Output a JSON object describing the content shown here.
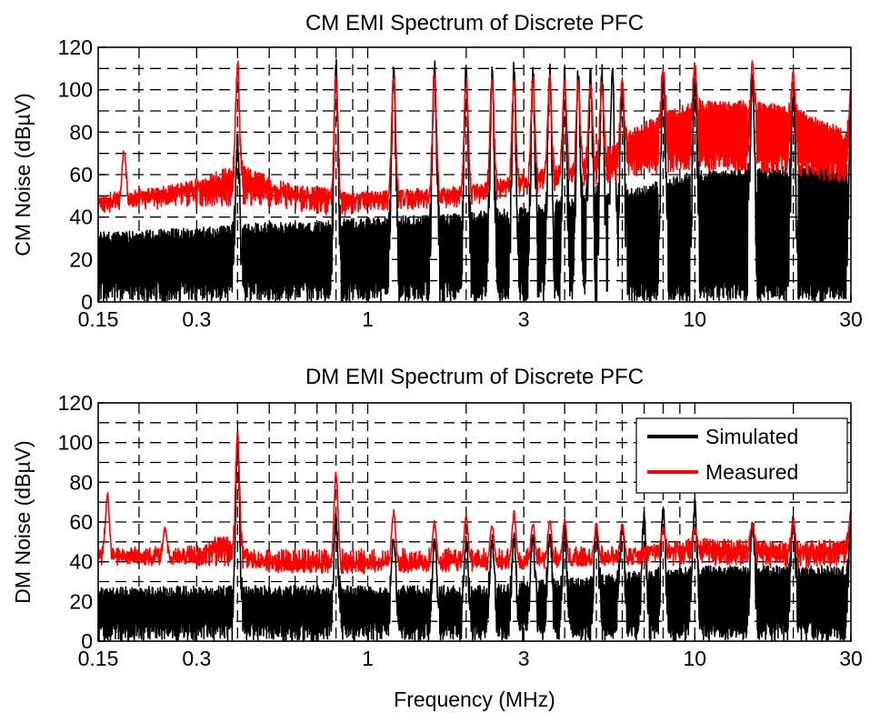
{
  "chart_data": [
    {
      "type": "line",
      "title": "CM EMI Spectrum of Discrete PFC",
      "xlabel": "",
      "ylabel": "CM Noise (dBµV)",
      "xscale": "log",
      "xlim": [
        0.15,
        30
      ],
      "ylim": [
        0,
        120
      ],
      "xticks": [
        0.15,
        0.3,
        1,
        3,
        10,
        30
      ],
      "xtick_labels": [
        "0.15",
        "0.3",
        "1",
        "3",
        "10",
        "30"
      ],
      "yticks": [
        0,
        20,
        40,
        60,
        80,
        100,
        120
      ],
      "ytick_labels": [
        "0",
        "20",
        "40",
        "60",
        "80",
        "100",
        "120"
      ],
      "grid": true,
      "legend": false,
      "series": [
        {
          "name": "Simulated",
          "color": "#000000",
          "floor": [
            [
              0.15,
              0
            ],
            [
              0.5,
              0
            ],
            [
              1,
              0
            ],
            [
              3,
              0
            ],
            [
              10,
              0
            ],
            [
              30,
              0
            ]
          ],
          "envelope": [
            [
              0.15,
              33
            ],
            [
              0.3,
              35
            ],
            [
              0.4,
              37
            ],
            [
              0.7,
              38
            ],
            [
              1,
              40
            ],
            [
              2,
              42
            ],
            [
              3,
              45
            ],
            [
              5,
              52
            ],
            [
              7,
              55
            ],
            [
              10,
              62
            ],
            [
              20,
              64
            ],
            [
              30,
              65
            ]
          ],
          "peaks": [
            [
              0.4,
              80
            ],
            [
              0.8,
              117
            ],
            [
              1.2,
              114
            ],
            [
              1.6,
              116
            ],
            [
              2.0,
              116
            ],
            [
              2.4,
              115
            ],
            [
              2.8,
              115
            ],
            [
              3.2,
              115
            ],
            [
              3.6,
              114
            ],
            [
              4.0,
              114
            ],
            [
              4.4,
              114
            ],
            [
              4.8,
              113
            ],
            [
              5.2,
              113
            ],
            [
              5.6,
              112
            ],
            [
              6.0,
              111
            ],
            [
              8,
              110
            ],
            [
              10,
              110
            ],
            [
              15,
              108
            ],
            [
              20,
              104
            ],
            [
              30,
              98
            ]
          ]
        },
        {
          "name": "Measured",
          "color": "#ff0000",
          "floor": [
            [
              0.15,
              42
            ],
            [
              0.3,
              45
            ],
            [
              0.5,
              45
            ],
            [
              0.8,
              40
            ],
            [
              1,
              42
            ],
            [
              2,
              45
            ],
            [
              3,
              50
            ],
            [
              5,
              55
            ],
            [
              7,
              60
            ],
            [
              10,
              62
            ],
            [
              20,
              60
            ],
            [
              30,
              55
            ]
          ],
          "envelope": [
            [
              0.15,
              50
            ],
            [
              0.2,
              52
            ],
            [
              0.3,
              58
            ],
            [
              0.4,
              65
            ],
            [
              0.6,
              55
            ],
            [
              1,
              52
            ],
            [
              2,
              55
            ],
            [
              3,
              60
            ],
            [
              5,
              70
            ],
            [
              7,
              85
            ],
            [
              10,
              95
            ],
            [
              15,
              95
            ],
            [
              20,
              92
            ],
            [
              30,
              80
            ]
          ],
          "peaks": [
            [
              0.18,
              73
            ],
            [
              0.4,
              117
            ],
            [
              0.8,
              112
            ],
            [
              1.2,
              112
            ],
            [
              1.6,
              111
            ],
            [
              2.0,
              110
            ],
            [
              2.4,
              110
            ],
            [
              2.8,
              109
            ],
            [
              3.2,
              108
            ],
            [
              3.6,
              108
            ],
            [
              4.0,
              107
            ],
            [
              4.4,
              106
            ],
            [
              4.8,
              106
            ],
            [
              5.2,
              105
            ],
            [
              6,
              106
            ],
            [
              8,
              113
            ],
            [
              10,
              113
            ],
            [
              15,
              114
            ],
            [
              20,
              110
            ],
            [
              30,
              103
            ]
          ]
        }
      ]
    },
    {
      "type": "line",
      "title": "DM EMI Spectrum of Discrete PFC",
      "xlabel": "Frequency (MHz)",
      "ylabel": "DM Noise (dBµV)",
      "xscale": "log",
      "xlim": [
        0.15,
        30
      ],
      "ylim": [
        0,
        120
      ],
      "xticks": [
        0.15,
        0.3,
        1,
        3,
        10,
        30
      ],
      "xtick_labels": [
        "0.15",
        "0.3",
        "1",
        "3",
        "10",
        "30"
      ],
      "yticks": [
        0,
        20,
        40,
        60,
        80,
        100,
        120
      ],
      "ytick_labels": [
        "0",
        "20",
        "40",
        "60",
        "80",
        "100",
        "120"
      ],
      "grid": true,
      "legend": true,
      "legend_position": "top-right",
      "series": [
        {
          "name": "Simulated",
          "color": "#000000",
          "floor": [
            [
              0.15,
              0
            ],
            [
              1,
              0
            ],
            [
              10,
              0
            ],
            [
              30,
              0
            ]
          ],
          "envelope": [
            [
              0.15,
              27
            ],
            [
              0.3,
              28
            ],
            [
              0.5,
              28
            ],
            [
              1,
              28
            ],
            [
              2,
              28
            ],
            [
              3,
              30
            ],
            [
              5,
              33
            ],
            [
              7,
              36
            ],
            [
              10,
              38
            ],
            [
              20,
              38
            ],
            [
              30,
              38
            ]
          ],
          "peaks": [
            [
              0.4,
              108
            ],
            [
              0.8,
              65
            ],
            [
              1.2,
              55
            ],
            [
              1.6,
              54
            ],
            [
              2.0,
              55
            ],
            [
              2.4,
              54
            ],
            [
              2.8,
              55
            ],
            [
              3.2,
              56
            ],
            [
              3.6,
              57
            ],
            [
              4.0,
              58
            ],
            [
              5,
              60
            ],
            [
              6,
              62
            ],
            [
              7,
              66
            ],
            [
              8,
              70
            ],
            [
              10,
              73
            ],
            [
              15,
              65
            ],
            [
              20,
              64
            ],
            [
              30,
              63
            ]
          ]
        },
        {
          "name": "Measured",
          "color": "#ff0000",
          "floor": [
            [
              0.15,
              38
            ],
            [
              0.3,
              38
            ],
            [
              0.5,
              36
            ],
            [
              1,
              37
            ],
            [
              2,
              37
            ],
            [
              3,
              37
            ],
            [
              5,
              38
            ],
            [
              7,
              38
            ],
            [
              10,
              38
            ],
            [
              20,
              36
            ],
            [
              30,
              38
            ]
          ],
          "envelope": [
            [
              0.15,
              48
            ],
            [
              0.2,
              46
            ],
            [
              0.3,
              45
            ],
            [
              0.35,
              55
            ],
            [
              0.5,
              40
            ],
            [
              1,
              40
            ],
            [
              2,
              41
            ],
            [
              3,
              42
            ],
            [
              5,
              44
            ],
            [
              7,
              48
            ],
            [
              10,
              52
            ],
            [
              20,
              50
            ],
            [
              30,
              52
            ]
          ],
          "peaks": [
            [
              0.16,
              77
            ],
            [
              0.24,
              58
            ],
            [
              0.4,
              108
            ],
            [
              0.8,
              89
            ],
            [
              1.2,
              67
            ],
            [
              1.6,
              61
            ],
            [
              2.0,
              64
            ],
            [
              2.4,
              60
            ],
            [
              2.8,
              66
            ],
            [
              3.2,
              61
            ],
            [
              3.6,
              62
            ],
            [
              4.0,
              62
            ],
            [
              5,
              60
            ],
            [
              6,
              60
            ],
            [
              8,
              58
            ],
            [
              10,
              58
            ],
            [
              15,
              60
            ],
            [
              20,
              62
            ],
            [
              30,
              68
            ]
          ]
        }
      ]
    }
  ]
}
